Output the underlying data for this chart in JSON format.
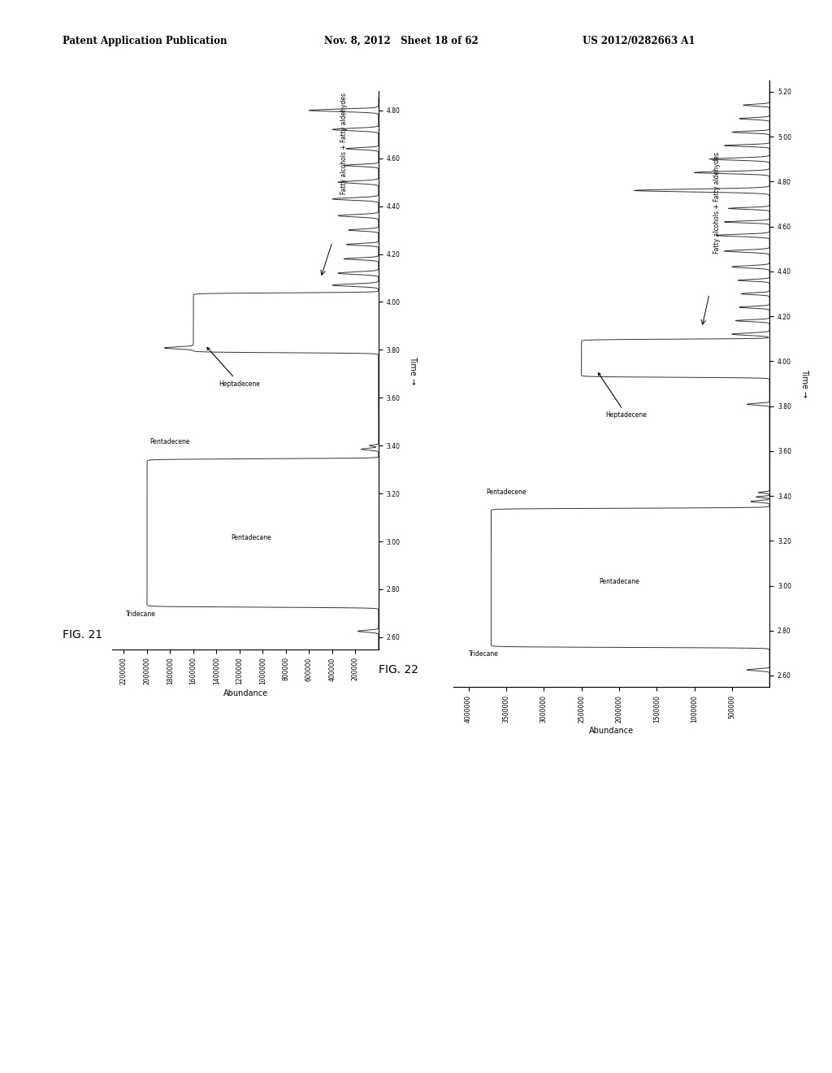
{
  "header_left": "Patent Application Publication",
  "header_mid": "Nov. 8, 2012   Sheet 18 of 62",
  "header_right": "US 2012/0282663 A1",
  "fig21_label": "FIG. 21",
  "fig22_label": "FIG. 22",
  "fig21_ylabel_rot": "Abundance",
  "fig21_xlabel_rot": "Time →",
  "fig22_ylabel_rot": "Abundance",
  "fig22_xlabel_rot": "Time →",
  "fig21_abundance_ticks": [
    2200000,
    2000000,
    1800000,
    1600000,
    1400000,
    1200000,
    1000000,
    800000,
    600000,
    400000,
    200000
  ],
  "fig21_time_ticks": [
    2.6,
    2.8,
    3.0,
    3.2,
    3.4,
    3.6,
    3.8,
    4.0,
    4.2,
    4.4,
    4.6,
    4.8
  ],
  "fig22_abundance_ticks": [
    4000000,
    3500000,
    3000000,
    2500000,
    2000000,
    1500000,
    1000000,
    500000
  ],
  "fig22_time_ticks": [
    2.6,
    2.8,
    3.0,
    3.2,
    3.4,
    3.6,
    3.8,
    4.0,
    4.2,
    4.4,
    4.6,
    4.8,
    5.0,
    5.2
  ],
  "background_color": "#ffffff",
  "line_color": "#333333"
}
